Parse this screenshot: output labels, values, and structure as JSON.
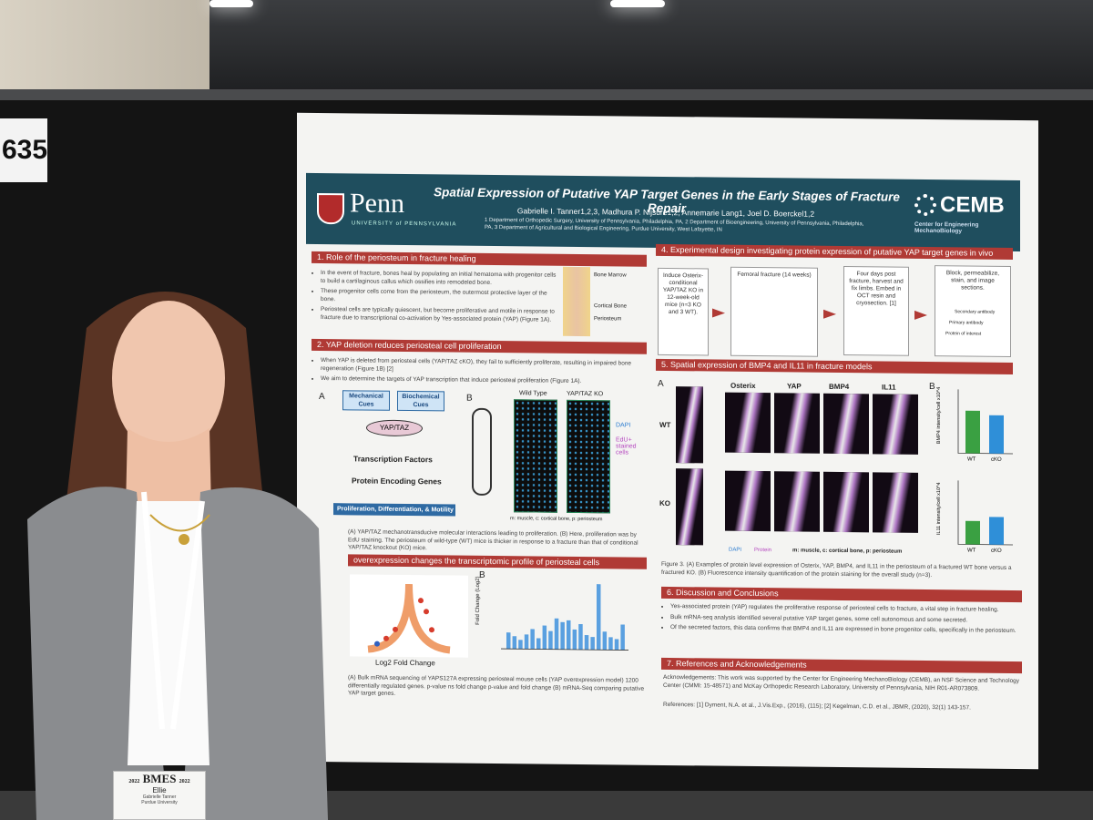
{
  "booth_number": "635",
  "poster": {
    "university": "Penn",
    "university_sub": "UNIVERSITY of PENNSYLVANIA",
    "title": "Spatial Expression of Putative YAP Target Genes in the Early Stages of Fracture Repair",
    "authors": "Gabrielle I. Tanner1,2,3, Madhura P. Nijsure1,2, Annemarie Lang1, Joel D. Boerckel1,2",
    "affiliations": "1 Department of Orthopedic Surgery, University of Pennsylvania, Philadelphia, PA, 2 Department of Bioengineering, University of Pennsylvania, Philadelphia, PA, 3 Department of Agricultural and Biological Engineering, Purdue University, West Lafayette, IN",
    "org_logo": "CEMB",
    "org_sub": "Center for Engineering MechanoBiology",
    "sec1": {
      "heading": "1. Role of the periosteum in fracture healing",
      "bullets": [
        "In the event of fracture, bones heal by populating an initial hematoma with progenitor cells to build a cartilaginous callus which ossifies into remodeled bone.",
        "These progenitor cells come from the periosteum, the outermost protective layer of the bone.",
        "Periosteal cells are typically quiescent, but become proliferative and motile in response to fracture due to transcriptional co-activation by Yes-associated protein (YAP) (Figure 1A)."
      ],
      "fig_labels": [
        "Bone Marrow",
        "Cortical Bone",
        "Periosteum"
      ]
    },
    "sec2": {
      "heading": "2. YAP deletion reduces periosteal cell proliferation",
      "bullets": [
        "When YAP is deleted from periosteal cells (YAP/TAZ cKO), they fail to sufficiently proliferate, resulting in impaired bone regeneration (Figure 1B) [2]",
        "We aim to determine the targets of YAP transcription that induce periosteal proliferation (Figure 1A)."
      ],
      "panel_a": "A",
      "panel_b": "B",
      "cue1": "Mechanical Cues",
      "cue2": "Biochemical Cues",
      "node_yap": "YAP/TAZ",
      "node_tf": "Transcription Factors",
      "node_genes": "Protein Encoding Genes",
      "outcome": "Proliferation, Differentiation, & Motility",
      "wt": "Wild Type",
      "ko": "YAP/TAZ KO",
      "dapi": "DAPI",
      "edu": "EdU+ stained cells",
      "legend": "m: muscle, c: cortical bone, p: periosteum",
      "caption": "(A) YAP/TAZ mechanotransducive molecular interactions leading to proliferation. (B) Here, proliferation was by EdU staining. The periosteum of wild-type (WT) mice is thicker in response to a fracture than that of conditional YAP/TAZ knockout (KO) mice."
    },
    "sec3": {
      "heading": "overexpression changes the transcriptomic profile of periosteal cells",
      "panel_b": "B",
      "xlabel": "Log2 Fold Change",
      "ylabel": "Fold Change (Log2)",
      "caption": "(A) Bulk mRNA sequencing of YAPS127A expressing periosteal mouse cells (YAP overexpression model) 1200 differentially regulated genes. p-value ns fold change p-value and fold change (B) mRNA-Seq comparing putative YAP target genes."
    },
    "sec4": {
      "heading": "4. Experimental design investigating protein expression of putative YAP target genes in vivo",
      "steps": [
        "Induce Osterix-conditional YAP/TAZ KO in 12-week-old mice (n=3 KO and 3 WT).",
        "Femoral fracture (14 weeks)",
        "Four days post fracture, harvest and fix limbs. Embed in OCT resin and cryosection. [1]",
        "Block, permeabilize, stain, and image sections."
      ],
      "antibody_labels": [
        "Secondary antibody",
        "Primary antibody",
        "Protein of interest"
      ]
    },
    "sec5": {
      "heading": "5. Spatial expression of BMP4 and IL11 in fracture models",
      "panel_a": "A",
      "panel_b": "B",
      "columns": [
        "Osterix",
        "YAP",
        "BMP4",
        "IL11"
      ],
      "rows": [
        "WT",
        "KO"
      ],
      "legend": "m: muscle, c: cortical bone, p: periosteum",
      "dapi": "DAPI",
      "protein": "Protein",
      "caption": "Figure 3. (A) Examples of protein level expression of Osterix, YAP, BMP4, and IL11 in the periosteum of a fractured WT bone versus a fractured KO. (B) Fluorescence intensity quantification of the protein staining for the overall study (n=3)."
    },
    "sec6": {
      "heading": "6. Discussion and Conclusions",
      "bullets": [
        "Yes-associated protein (YAP) regulates the proliferative response of periosteal cells to fracture, a vital step in fracture healing.",
        "Bulk mRNA-seq analysis identified several putative YAP target genes, some cell autonomous and some secreted.",
        "Of the secreted factors, this data confirms that BMP4 and IL11 are expressed in bone progenitor cells, specifically in the periosteum."
      ]
    },
    "sec7": {
      "heading": "7. References and Acknowledgements",
      "ack": "Acknowledgements: This work was supported by the Center for Engineering MechanoBiology (CEMB), an NSF Science and Technology Center (CMMI: 15-48571) and McKay Orthopedic Research Laboratory, University of Pennsylvania, NIH R01-AR073809.",
      "refs": "References: [1] Dyment, N.A. et al., J.Vis.Exp., (2016), (115); [2] Kegelman, C.D. et al., JBMR, (2020), 32(1) 143-157."
    }
  },
  "badge": {
    "logo": "BMES",
    "year": "2022",
    "name": "Ellie",
    "fullname": "Gabrielle Tanner",
    "affiliation": "Purdue University"
  },
  "chart_data": [
    {
      "type": "bar",
      "title": "",
      "ylabel": "BMP4 intensity/cell x10^4",
      "categories": [
        "WT",
        "cKO"
      ],
      "values": [
        200,
        180
      ],
      "ylim": [
        0,
        300
      ]
    },
    {
      "type": "bar",
      "title": "",
      "ylabel": "IL11 intensity/cell x10^4",
      "categories": [
        "WT",
        "cKO"
      ],
      "values": [
        110,
        130
      ],
      "ylim": [
        0,
        300
      ]
    }
  ],
  "colors": {
    "banner": "#1f4e5e",
    "section_head": "#b03a35",
    "bar_wt": "#3aa042",
    "bar_cko": "#2f8fd8"
  }
}
